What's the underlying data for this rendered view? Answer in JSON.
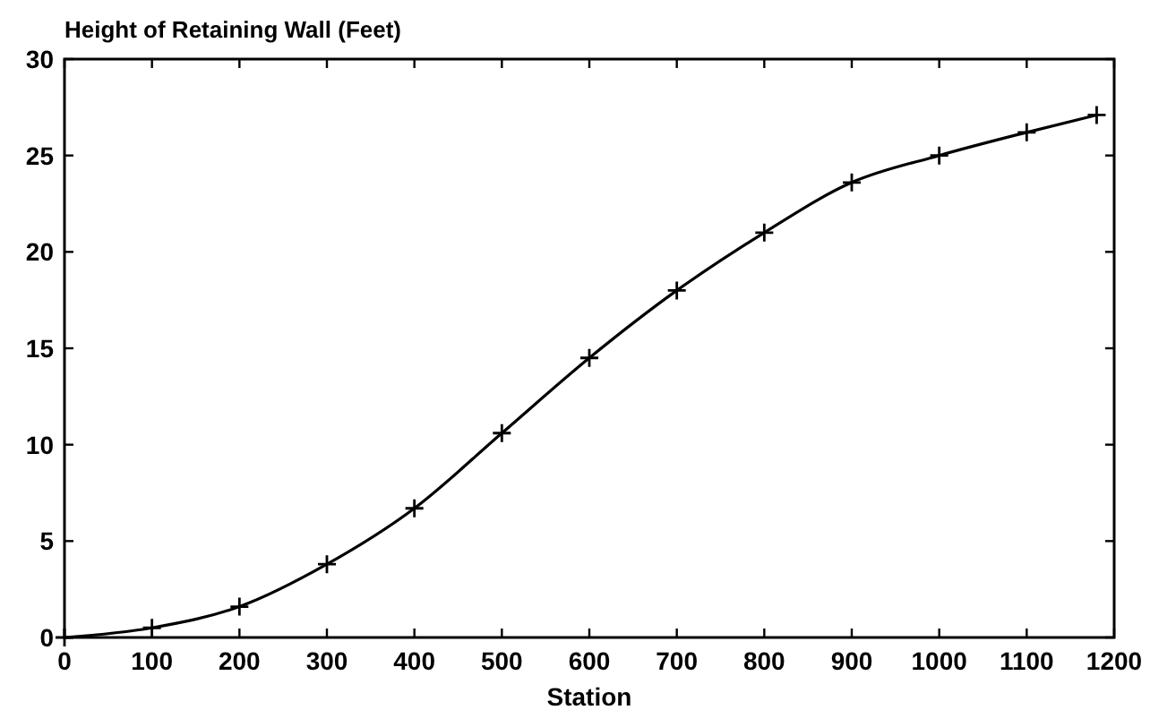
{
  "chart_data": {
    "type": "line",
    "ylabel": "Height of Retaining Wall (Feet)",
    "xlabel": "Station",
    "x": [
      0,
      100,
      200,
      300,
      400,
      500,
      600,
      700,
      800,
      900,
      1000,
      1100,
      1180
    ],
    "series": [
      {
        "color": "#000000",
        "values": [
          0,
          0.5,
          1.6,
          3.8,
          6.7,
          10.6,
          14.5,
          18,
          21,
          23.6,
          25,
          26.2,
          27.1
        ]
      }
    ],
    "xlim": [
      0,
      1200
    ],
    "xticks": [
      0,
      100,
      200,
      300,
      400,
      500,
      600,
      700,
      800,
      900,
      1000,
      1100,
      1200
    ],
    "ylim": [
      0,
      30
    ],
    "yticks": [
      0,
      5,
      10,
      15,
      20,
      25,
      30
    ],
    "marker": "cross",
    "line_style": "solid"
  }
}
